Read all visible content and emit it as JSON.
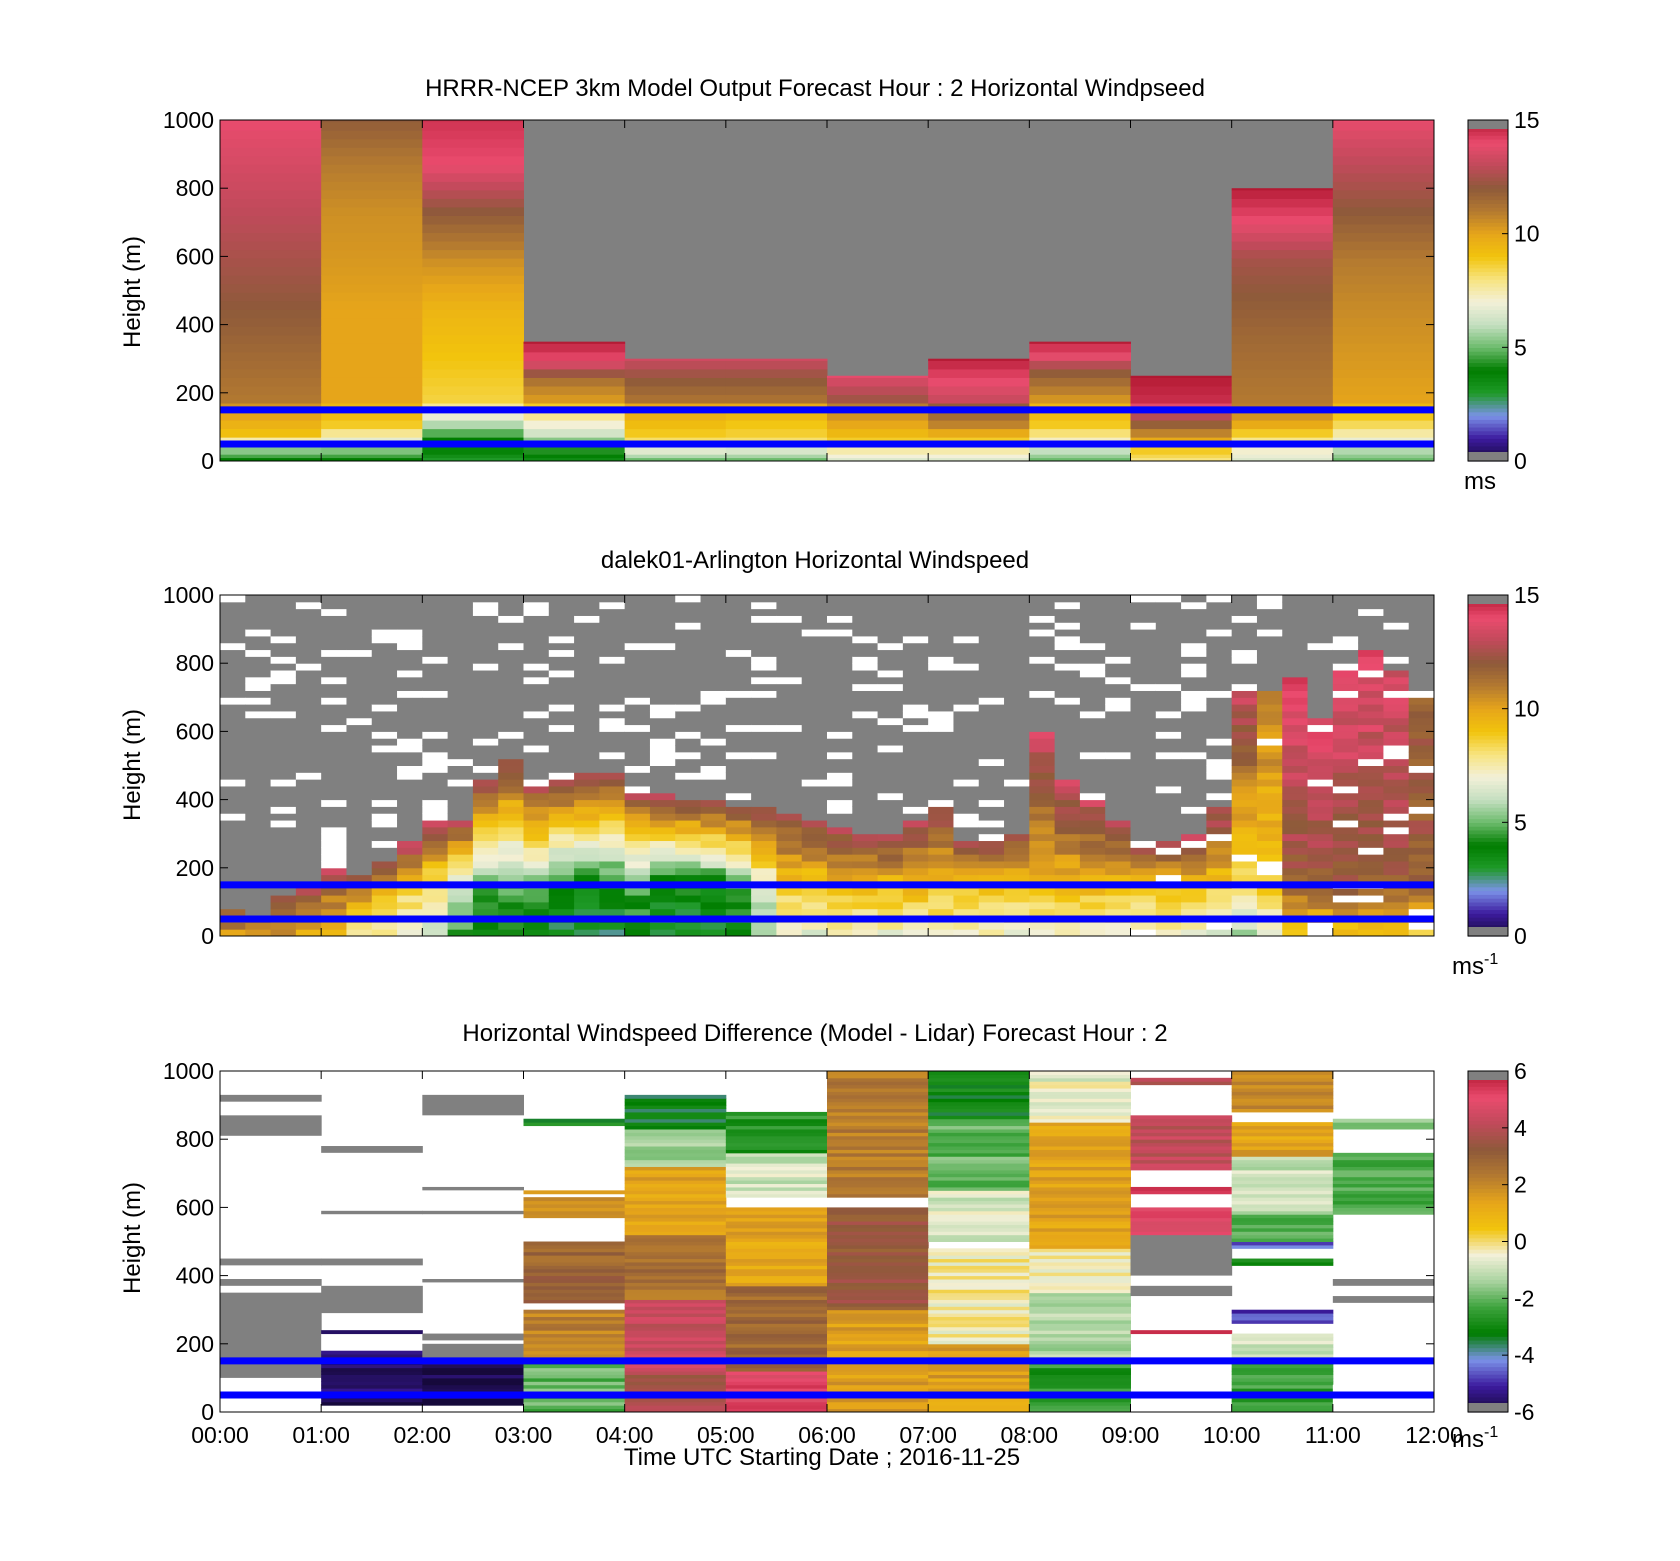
{
  "colors": {
    "missing": "#808080",
    "empty": "#ffffff",
    "band_line": "#0000ff",
    "speed_stops": [
      "#16093b",
      "#3c1a9e",
      "#7b92e8",
      "#1f9a28",
      "#007d00",
      "#6cbb6c",
      "#c4dfc0",
      "#f3f0d8",
      "#f7e480",
      "#f2c40d",
      "#e6a51a",
      "#b47a30",
      "#8e5a3a",
      "#c04a5a",
      "#ea4b6e",
      "#b01730"
    ],
    "diff_stops": [
      "#16093b",
      "#3c1a9e",
      "#7b92e8",
      "#007d00",
      "#3da33d",
      "#a9d3a0",
      "#f3f0d8",
      "#f2c40d",
      "#e6a51a",
      "#b47a30",
      "#8e5a3a",
      "#c04a5a",
      "#ea4b6e",
      "#b01730"
    ]
  },
  "chart_data": [
    {
      "type": "heatmap",
      "title": "HRRR-NCEP 3km Model Output   Forecast Hour : 2 Horizontal Windpseed",
      "ylabel": "Height (m)",
      "ylim": [
        0,
        1000
      ],
      "yticks": [
        "0",
        "200",
        "400",
        "600",
        "800",
        "1000"
      ],
      "xlim_hours": [
        0,
        12
      ],
      "colorbar": {
        "min": 0,
        "max": 15,
        "ticks": [
          "0",
          "5",
          "10",
          "15"
        ],
        "unit": "ms",
        "unit_sup": ""
      },
      "band_lines_m": [
        150,
        50
      ],
      "columns": [
        {
          "start_hour": 0,
          "end_hour": 1,
          "top_m": 1000,
          "low_values": [
            4,
            6,
            9,
            9.5,
            10,
            10.5
          ],
          "high_values": [
            11,
            11.5,
            12,
            12.5,
            13,
            13.5,
            14
          ]
        },
        {
          "start_hour": 1,
          "end_hour": 2,
          "top_m": 1000,
          "low_values": [
            4,
            7,
            9,
            9.5
          ],
          "high_values": [
            10,
            10,
            10,
            10.3,
            10.5,
            11,
            12
          ]
        },
        {
          "start_hour": 2,
          "end_hour": 3,
          "top_m": 1000,
          "low_values": [
            3,
            4,
            4,
            5,
            6,
            7,
            8
          ],
          "high_values": [
            8.5,
            9,
            9.5,
            10.5,
            12,
            14,
            14.5
          ]
        },
        {
          "start_hour": 3,
          "end_hour": 4,
          "top_m": 350,
          "low_values": [
            3.5,
            5,
            6.5,
            7.5,
            9
          ],
          "high_values": [
            10,
            11,
            14,
            15
          ]
        },
        {
          "start_hour": 4,
          "end_hour": 5,
          "top_m": 300,
          "low_values": [
            5,
            8,
            9,
            9.5,
            10
          ],
          "high_values": [
            11,
            12,
            13.5
          ]
        },
        {
          "start_hour": 5,
          "end_hour": 6,
          "top_m": 300,
          "low_values": [
            5,
            8.5,
            9,
            10
          ],
          "high_values": [
            11,
            12,
            13.5
          ]
        },
        {
          "start_hour": 6,
          "end_hour": 7,
          "top_m": 250,
          "low_values": [
            6.5,
            9,
            10,
            11
          ],
          "high_values": [
            12,
            14
          ]
        },
        {
          "start_hour": 7,
          "end_hour": 8,
          "top_m": 300,
          "low_values": [
            6.5,
            9,
            11,
            12
          ],
          "high_values": [
            13,
            14,
            15
          ]
        },
        {
          "start_hour": 8,
          "end_hour": 9,
          "top_m": 350,
          "low_values": [
            5,
            7.5,
            9,
            9.5
          ],
          "high_values": [
            10,
            11,
            12,
            14,
            15
          ]
        },
        {
          "start_hour": 9,
          "end_hour": 10,
          "top_m": 250,
          "low_values": [
            8,
            10,
            12,
            14
          ],
          "high_values": [
            14.5,
            15
          ]
        },
        {
          "start_hour": 10,
          "end_hour": 11,
          "top_m": 800,
          "low_values": [
            6.5,
            8,
            10,
            11
          ],
          "high_values": [
            11,
            11.3,
            11.6,
            12,
            12.5,
            14,
            15
          ]
        },
        {
          "start_hour": 11,
          "end_hour": 12,
          "top_m": 1000,
          "low_values": [
            5,
            7,
            8.5,
            9.5
          ],
          "high_values": [
            10,
            10.3,
            10.6,
            11,
            12,
            13,
            14
          ]
        }
      ]
    },
    {
      "type": "heatmap",
      "title": "dalek01-Arlington  Horizontal Windspeed",
      "ylabel": "Height (m)",
      "ylim": [
        0,
        1000
      ],
      "yticks": [
        "0",
        "200",
        "400",
        "600",
        "800",
        "1000"
      ],
      "xlim_hours": [
        0,
        12
      ],
      "colorbar": {
        "min": 0,
        "max": 15,
        "ticks": [
          "0",
          "5",
          "10",
          "15"
        ],
        "unit": "ms",
        "unit_sup": "-1"
      },
      "band_lines_m": [
        150,
        50
      ],
      "interval_hours": 0.25,
      "row_height_m": 20,
      "tops_m": [
        80,
        60,
        110,
        150,
        200,
        170,
        210,
        280,
        340,
        330,
        450,
        520,
        440,
        460,
        470,
        470,
        420,
        410,
        400,
        390,
        380,
        380,
        360,
        330,
        310,
        300,
        290,
        330,
        380,
        280,
        280,
        300,
        600,
        460,
        400,
        340,
        280,
        280,
        300,
        380,
        720,
        710,
        760,
        640,
        800,
        840,
        780,
        700
      ],
      "low_values": [
        14,
        14,
        14,
        13,
        12,
        11,
        10,
        9,
        8,
        6,
        5,
        5,
        5,
        4,
        4,
        4,
        5,
        4,
        4,
        4,
        5,
        7,
        9,
        9,
        9.5,
        9.5,
        9.5,
        9.5,
        9.5,
        9.5,
        9.5,
        9.5,
        9.5,
        9.5,
        9.5,
        9.5,
        9.5,
        9.5,
        9.5,
        9,
        8,
        9,
        12,
        12,
        12,
        12,
        12,
        12
      ],
      "high_values": [
        14,
        14,
        14,
        13.5,
        13.5,
        13.5,
        13,
        14,
        14,
        13,
        13,
        13,
        13,
        13,
        13,
        13,
        13,
        13,
        13,
        13,
        13,
        13,
        13,
        13,
        13,
        13,
        13,
        13,
        13,
        13,
        13,
        13,
        13.5,
        13.5,
        13.5,
        13.5,
        13.5,
        13.5,
        13.5,
        13.5,
        13.5,
        11,
        14,
        14,
        14,
        14,
        13.5,
        12
      ]
    },
    {
      "type": "heatmap",
      "title": "Horizontal Windspeed Difference (Model - Lidar) Forecast Hour : 2",
      "xlabel": "Time UTC  Starting Date ; 2016-11-25",
      "ylabel": "Height (m)",
      "ylim": [
        0,
        1000
      ],
      "yticks": [
        "0",
        "200",
        "400",
        "600",
        "800",
        "1000"
      ],
      "xticks": [
        "00:00",
        "01:00",
        "02:00",
        "03:00",
        "04:00",
        "05:00",
        "06:00",
        "07:00",
        "08:00",
        "09:00",
        "10:00",
        "11:00",
        "12:00"
      ],
      "xlim_hours": [
        0,
        12
      ],
      "colorbar": {
        "min": -6,
        "max": 6,
        "ticks": [
          "-6",
          "-4",
          "-2",
          "0",
          "2",
          "4",
          "6"
        ],
        "unit": "ms",
        "unit_sup": "-1"
      },
      "band_lines_m": [
        150,
        50
      ],
      "bands": [
        {
          "hour": 0,
          "bottom_m": 0,
          "top_m": 100,
          "value": "white"
        },
        {
          "hour": 0,
          "bottom_m": 100,
          "top_m": 350,
          "value": "missing"
        },
        {
          "hour": 0,
          "bottom_m": 370,
          "top_m": 390,
          "value": "missing"
        },
        {
          "hour": 0,
          "bottom_m": 430,
          "top_m": 450,
          "value": "missing"
        },
        {
          "hour": 0,
          "bottom_m": 810,
          "top_m": 870,
          "value": "missing"
        },
        {
          "hour": 0,
          "bottom_m": 910,
          "top_m": 930,
          "value": "missing"
        },
        {
          "hour": 1,
          "bottom_m": 20,
          "top_m": 180,
          "value": -5.6
        },
        {
          "hour": 1,
          "bottom_m": 180,
          "top_m": 230,
          "value": "white"
        },
        {
          "hour": 1,
          "bottom_m": 230,
          "top_m": 240,
          "value": -5.5
        },
        {
          "hour": 1,
          "bottom_m": 290,
          "top_m": 370,
          "value": "missing"
        },
        {
          "hour": 1,
          "bottom_m": 430,
          "top_m": 450,
          "value": "missing"
        },
        {
          "hour": 1,
          "bottom_m": 580,
          "top_m": 590,
          "value": "missing"
        },
        {
          "hour": 1,
          "bottom_m": 760,
          "top_m": 780,
          "value": "missing"
        },
        {
          "hour": 2,
          "bottom_m": 20,
          "top_m": 150,
          "value": -5.8
        },
        {
          "hour": 2,
          "bottom_m": 150,
          "top_m": 200,
          "value": "missing"
        },
        {
          "hour": 2,
          "bottom_m": 210,
          "top_m": 230,
          "value": "missing"
        },
        {
          "hour": 2,
          "bottom_m": 380,
          "top_m": 390,
          "value": "missing"
        },
        {
          "hour": 2,
          "bottom_m": 580,
          "top_m": 590,
          "value": "missing"
        },
        {
          "hour": 2,
          "bottom_m": 650,
          "top_m": 660,
          "value": "missing"
        },
        {
          "hour": 2,
          "bottom_m": 870,
          "top_m": 930,
          "value": "missing"
        },
        {
          "hour": 3,
          "bottom_m": 0,
          "top_m": 150,
          "value": -2
        },
        {
          "hour": 3,
          "bottom_m": 150,
          "top_m": 200,
          "value": 1.5
        },
        {
          "hour": 3,
          "bottom_m": 200,
          "top_m": 300,
          "value": 2.2
        },
        {
          "hour": 3,
          "bottom_m": 320,
          "top_m": 500,
          "value": 2.9
        },
        {
          "hour": 3,
          "bottom_m": 570,
          "top_m": 630,
          "value": 2
        },
        {
          "hour": 3,
          "bottom_m": 640,
          "top_m": 650,
          "value": 1.5
        },
        {
          "hour": 3,
          "bottom_m": 840,
          "top_m": 860,
          "value": -3
        },
        {
          "hour": 4,
          "bottom_m": 0,
          "top_m": 120,
          "value": 3.6
        },
        {
          "hour": 4,
          "bottom_m": 120,
          "top_m": 330,
          "value": 4.3
        },
        {
          "hour": 4,
          "bottom_m": 330,
          "top_m": 520,
          "value": 2.6
        },
        {
          "hour": 4,
          "bottom_m": 520,
          "top_m": 720,
          "value": 1.4
        },
        {
          "hour": 4,
          "bottom_m": 720,
          "top_m": 830,
          "value": -1.5
        },
        {
          "hour": 4,
          "bottom_m": 830,
          "top_m": 930,
          "value": -3.2
        },
        {
          "hour": 5,
          "bottom_m": 0,
          "top_m": 120,
          "value": 5
        },
        {
          "hour": 5,
          "bottom_m": 120,
          "top_m": 370,
          "value": 2.8
        },
        {
          "hour": 5,
          "bottom_m": 370,
          "top_m": 600,
          "value": 1.3
        },
        {
          "hour": 5,
          "bottom_m": 630,
          "top_m": 760,
          "value": -0.9
        },
        {
          "hour": 5,
          "bottom_m": 760,
          "top_m": 880,
          "value": -2.6
        },
        {
          "hour": 6,
          "bottom_m": 0,
          "top_m": 300,
          "value": 1.5
        },
        {
          "hour": 6,
          "bottom_m": 300,
          "top_m": 600,
          "value": 3.3
        },
        {
          "hour": 6,
          "bottom_m": 630,
          "top_m": 1000,
          "value": 2.3
        },
        {
          "hour": 7,
          "bottom_m": 0,
          "top_m": 200,
          "value": 1.5
        },
        {
          "hour": 7,
          "bottom_m": 200,
          "top_m": 480,
          "value": -0.3
        },
        {
          "hour": 7,
          "bottom_m": 500,
          "top_m": 650,
          "value": -0.8
        },
        {
          "hour": 7,
          "bottom_m": 650,
          "top_m": 860,
          "value": -2
        },
        {
          "hour": 7,
          "bottom_m": 860,
          "top_m": 1000,
          "value": -3.1
        },
        {
          "hour": 8,
          "bottom_m": 0,
          "top_m": 160,
          "value": -2.6
        },
        {
          "hour": 8,
          "bottom_m": 160,
          "top_m": 350,
          "value": -1.3
        },
        {
          "hour": 8,
          "bottom_m": 350,
          "top_m": 480,
          "value": -0.3
        },
        {
          "hour": 8,
          "bottom_m": 480,
          "top_m": 850,
          "value": 1.4
        },
        {
          "hour": 8,
          "bottom_m": 850,
          "top_m": 1000,
          "value": -0.6
        },
        {
          "hour": 9,
          "bottom_m": 230,
          "top_m": 240,
          "value": 5.2
        },
        {
          "hour": 9,
          "bottom_m": 340,
          "top_m": 370,
          "value": "missing"
        },
        {
          "hour": 9,
          "bottom_m": 400,
          "top_m": 520,
          "value": "missing"
        },
        {
          "hour": 9,
          "bottom_m": 520,
          "top_m": 600,
          "value": 5
        },
        {
          "hour": 9,
          "bottom_m": 640,
          "top_m": 660,
          "value": 5.4
        },
        {
          "hour": 9,
          "bottom_m": 710,
          "top_m": 870,
          "value": 4.2
        },
        {
          "hour": 9,
          "bottom_m": 960,
          "top_m": 980,
          "value": 3.8
        },
        {
          "hour": 10,
          "bottom_m": 0,
          "top_m": 160,
          "value": -2.5
        },
        {
          "hour": 10,
          "bottom_m": 160,
          "top_m": 230,
          "value": -1
        },
        {
          "hour": 10,
          "bottom_m": 260,
          "top_m": 300,
          "value": -4.8
        },
        {
          "hour": 10,
          "bottom_m": 430,
          "top_m": 450,
          "value": -2.8
        },
        {
          "hour": 10,
          "bottom_m": 480,
          "top_m": 500,
          "value": -4.5
        },
        {
          "hour": 10,
          "bottom_m": 500,
          "top_m": 580,
          "value": -2.2
        },
        {
          "hour": 10,
          "bottom_m": 580,
          "top_m": 750,
          "value": -1
        },
        {
          "hour": 10,
          "bottom_m": 750,
          "top_m": 850,
          "value": 1.4
        },
        {
          "hour": 10,
          "bottom_m": 880,
          "top_m": 1000,
          "value": 2.1
        },
        {
          "hour": 11,
          "bottom_m": 0,
          "top_m": 80,
          "value": "white"
        },
        {
          "hour": 11,
          "bottom_m": 320,
          "top_m": 340,
          "value": "missing"
        },
        {
          "hour": 11,
          "bottom_m": 370,
          "top_m": 390,
          "value": "missing"
        },
        {
          "hour": 11,
          "bottom_m": 580,
          "top_m": 760,
          "value": -2.2
        },
        {
          "hour": 11,
          "bottom_m": 830,
          "top_m": 860,
          "value": -1.5
        }
      ]
    }
  ]
}
